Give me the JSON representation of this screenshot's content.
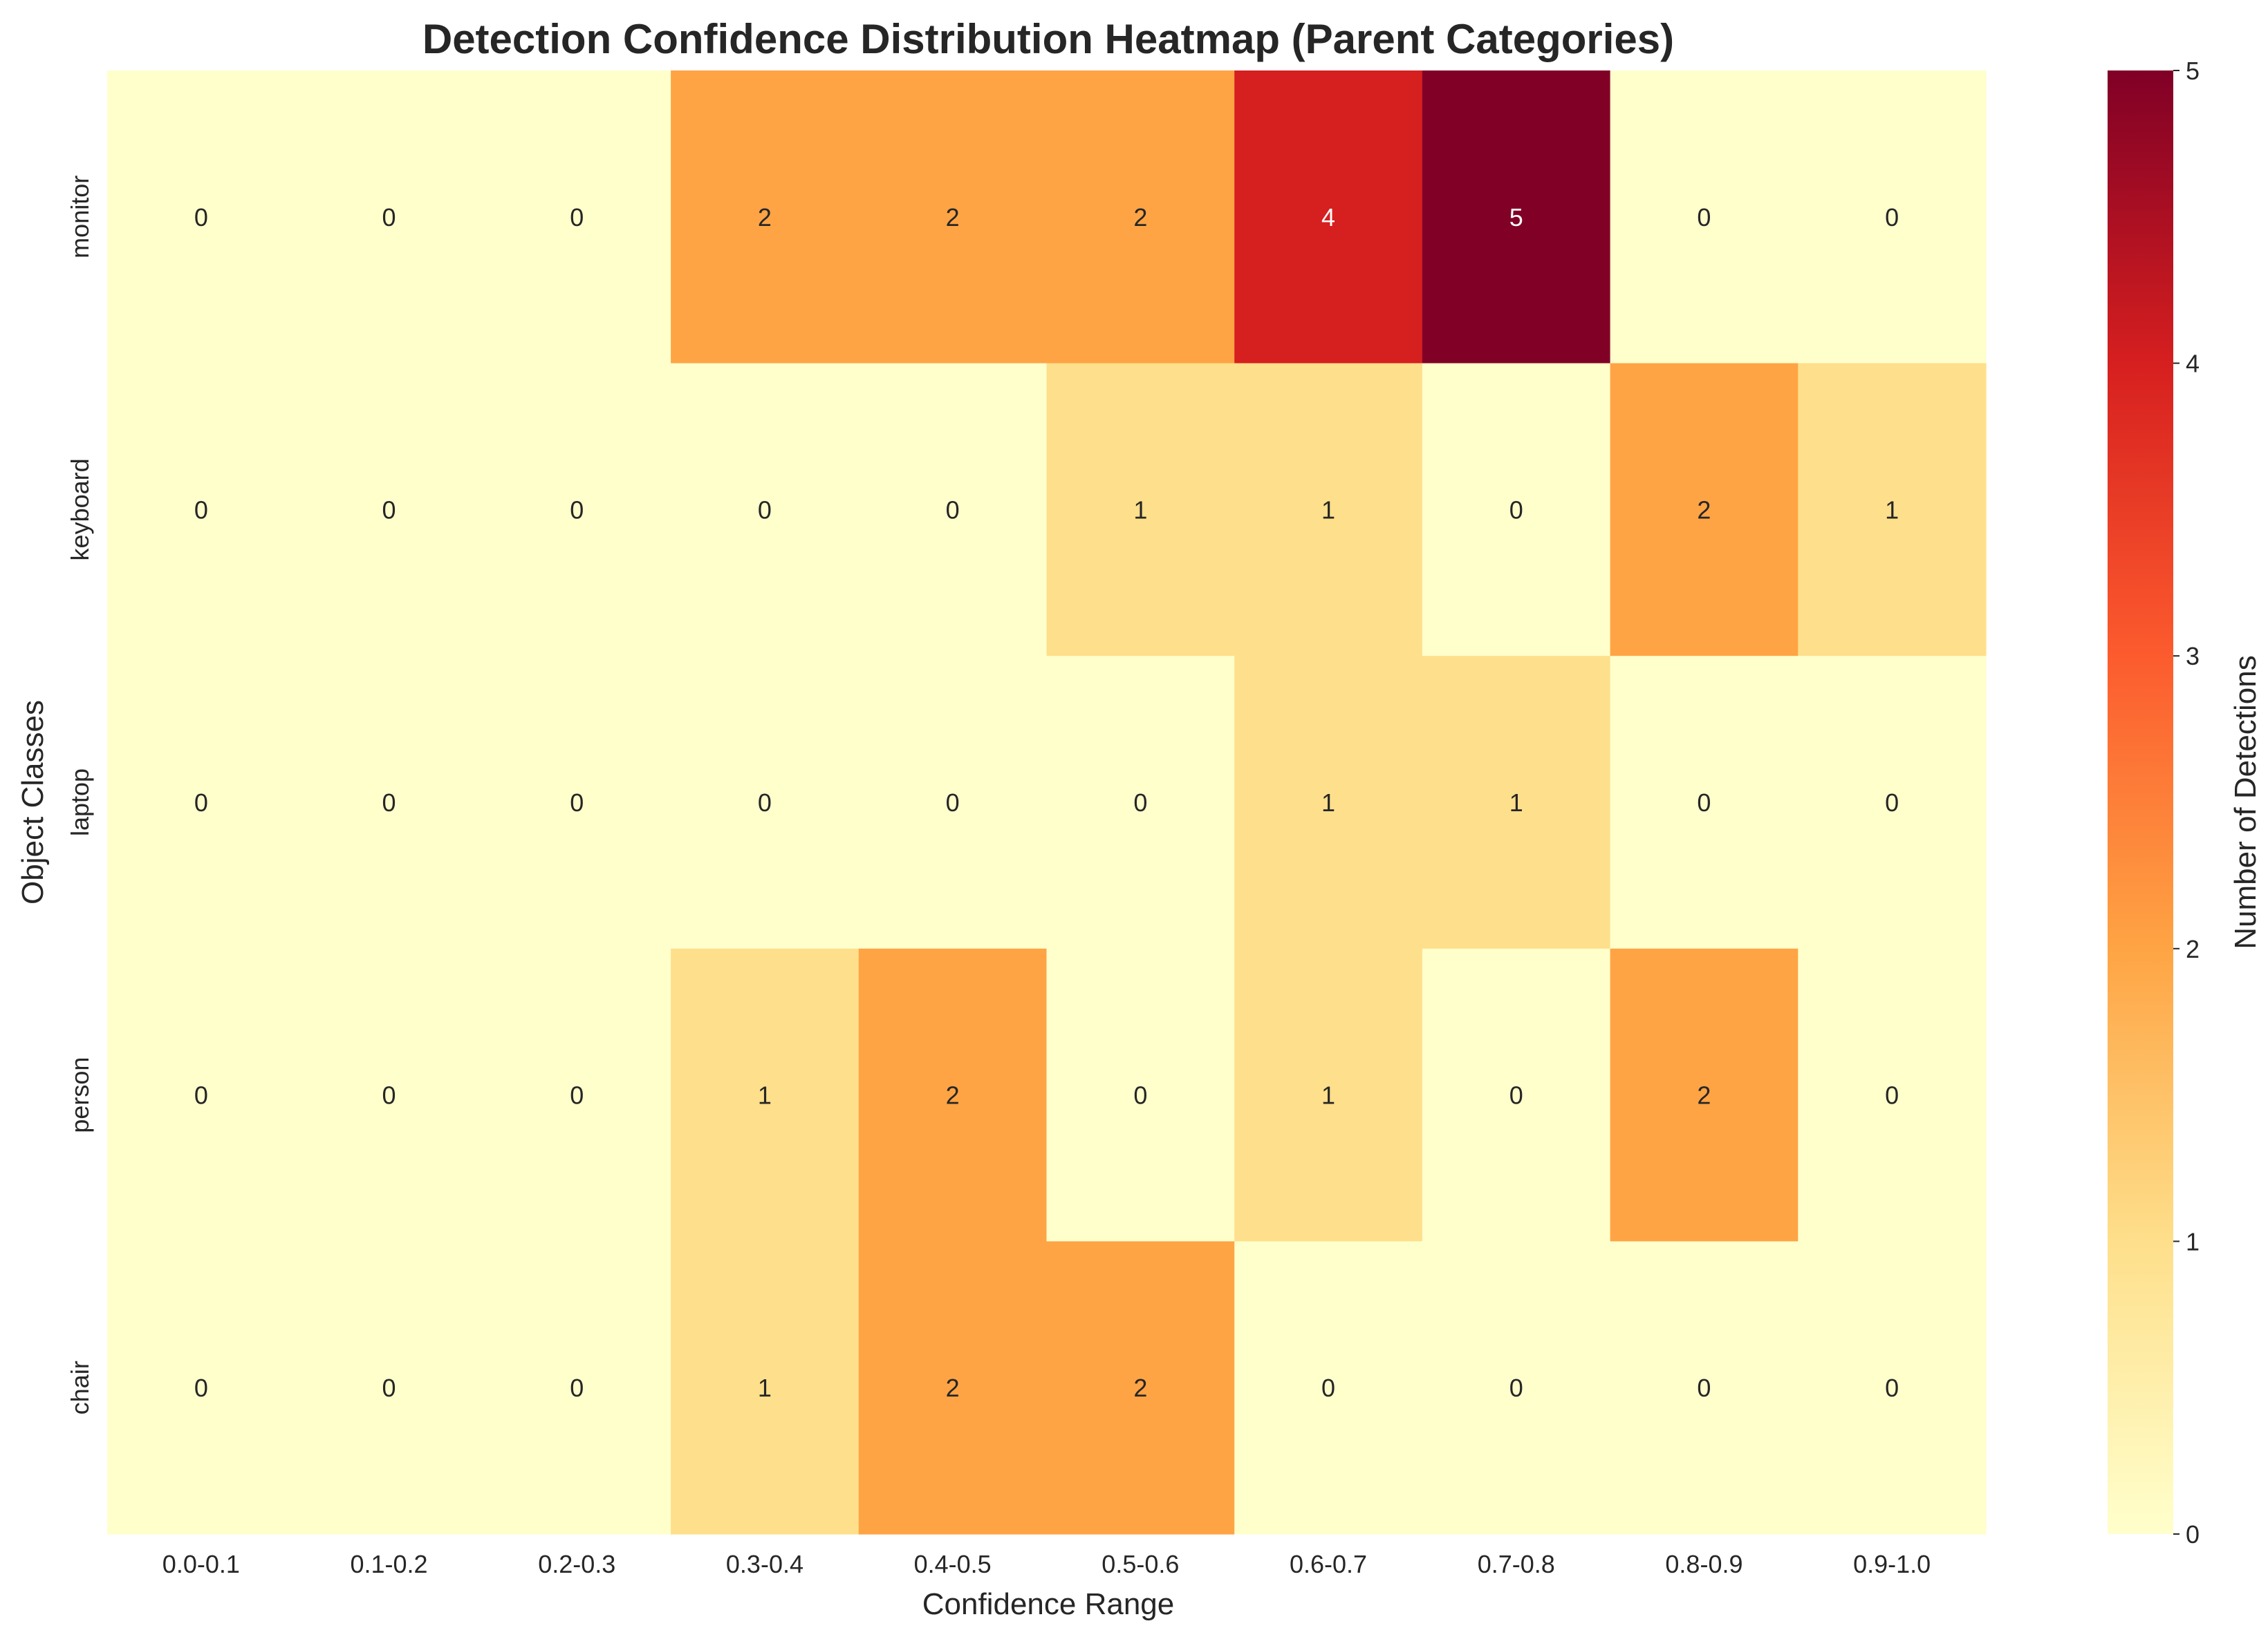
{
  "chart_data": {
    "type": "heatmap",
    "title": "Detection Confidence Distribution Heatmap (Parent Categories)",
    "xlabel": "Confidence Range",
    "ylabel": "Object Classes",
    "x_categories": [
      "0.0-0.1",
      "0.1-0.2",
      "0.2-0.3",
      "0.3-0.4",
      "0.4-0.5",
      "0.5-0.6",
      "0.6-0.7",
      "0.7-0.8",
      "0.8-0.9",
      "0.9-1.0"
    ],
    "y_categories": [
      "monitor",
      "keyboard",
      "laptop",
      "person",
      "chair"
    ],
    "values": [
      [
        0,
        0,
        0,
        2,
        2,
        2,
        4,
        5,
        0,
        0
      ],
      [
        0,
        0,
        0,
        0,
        0,
        1,
        1,
        0,
        2,
        1
      ],
      [
        0,
        0,
        0,
        0,
        0,
        0,
        1,
        1,
        0,
        0
      ],
      [
        0,
        0,
        0,
        1,
        2,
        0,
        1,
        0,
        2,
        0
      ],
      [
        0,
        0,
        0,
        1,
        2,
        2,
        0,
        0,
        0,
        0
      ]
    ],
    "annotated": true,
    "colormap": "YlOrRd",
    "color_scale": [
      {
        "value": 0,
        "color": "#ffffcc"
      },
      {
        "value": 1,
        "color": "#fedf8b"
      },
      {
        "value": 2,
        "color": "#fea444"
      },
      {
        "value": 3,
        "color": "#fc5b2e"
      },
      {
        "value": 4,
        "color": "#d61f1f"
      },
      {
        "value": 5,
        "color": "#800026"
      }
    ],
    "colorbar": {
      "label": "Number of Detections",
      "range": [
        0,
        5
      ],
      "ticks": [
        "0",
        "1",
        "2",
        "3",
        "4",
        "5"
      ]
    },
    "grid": false
  }
}
